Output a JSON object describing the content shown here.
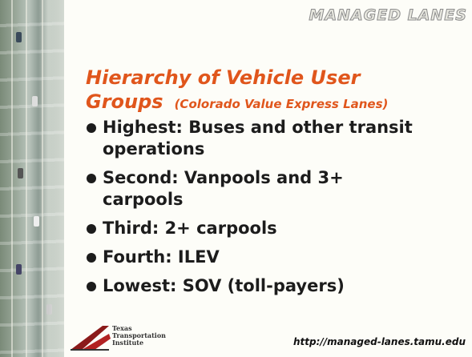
{
  "header": {
    "brand": "MANAGED LANES"
  },
  "title": {
    "main": "Hierarchy of Vehicle User Groups",
    "subtitle": "(Colorado Value Express Lanes)"
  },
  "bullets": [
    [
      "Highest: Buses and other transit",
      "operations"
    ],
    [
      "Second: Vanpools and 3+",
      "carpools"
    ],
    [
      "Third: 2+ carpools"
    ],
    [
      "Fourth: ILEV"
    ],
    [
      "Lowest: SOV (toll-payers)"
    ]
  ],
  "footer": {
    "logo_lines": [
      "Texas",
      "Transportation",
      "Institute"
    ],
    "url": "http://managed-lanes.tamu.edu"
  }
}
